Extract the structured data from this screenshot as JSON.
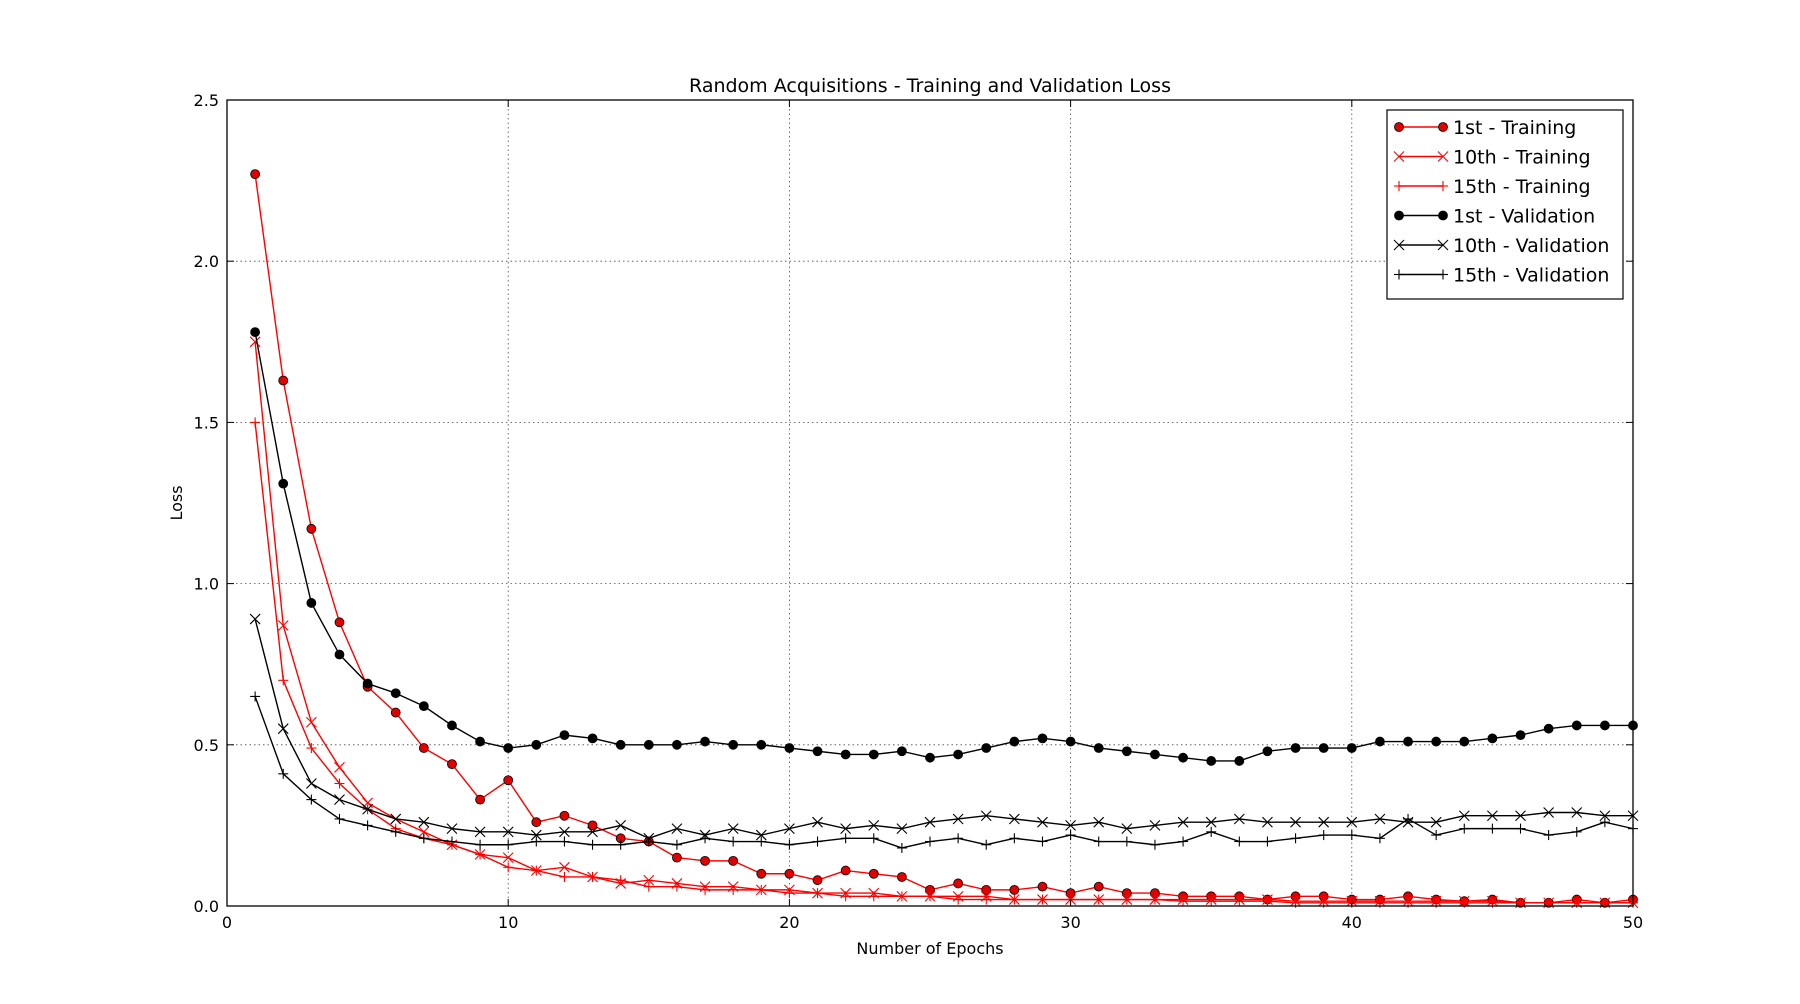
{
  "chart_data": {
    "type": "line",
    "title": "Random Acquisitions  - Training and Validation Loss",
    "xlabel": "Number of Epochs",
    "ylabel": "Loss",
    "xlim": [
      0,
      50
    ],
    "ylim": [
      0,
      2.5
    ],
    "xticks": [
      0,
      10,
      20,
      30,
      40,
      50
    ],
    "yticks": [
      0.0,
      0.5,
      1.0,
      1.5,
      2.0,
      2.5
    ],
    "xtick_labels": [
      "0",
      "10",
      "20",
      "30",
      "40",
      "50"
    ],
    "ytick_labels": [
      "0.0",
      "0.5",
      "1.0",
      "1.5",
      "2.0",
      "2.5"
    ],
    "grid": true,
    "legend_position": "top-right",
    "x": [
      1,
      2,
      3,
      4,
      5,
      6,
      7,
      8,
      9,
      10,
      11,
      12,
      13,
      14,
      15,
      16,
      17,
      18,
      19,
      20,
      21,
      22,
      23,
      24,
      25,
      26,
      27,
      28,
      29,
      30,
      31,
      32,
      33,
      34,
      35,
      36,
      37,
      38,
      39,
      40,
      41,
      42,
      43,
      44,
      45,
      46,
      47,
      48,
      49,
      50
    ],
    "series": [
      {
        "name": "1st - Training",
        "color": "#ff0000",
        "marker": "circle",
        "values": [
          2.27,
          1.63,
          1.17,
          0.88,
          0.68,
          0.6,
          0.49,
          0.44,
          0.33,
          0.39,
          0.26,
          0.28,
          0.25,
          0.21,
          0.2,
          0.15,
          0.14,
          0.14,
          0.1,
          0.1,
          0.08,
          0.11,
          0.1,
          0.09,
          0.05,
          0.07,
          0.05,
          0.05,
          0.06,
          0.04,
          0.06,
          0.04,
          0.04,
          0.03,
          0.03,
          0.03,
          0.02,
          0.03,
          0.03,
          0.02,
          0.02,
          0.03,
          0.02,
          0.015,
          0.02,
          0.01,
          0.01,
          0.02,
          0.01,
          0.02
        ]
      },
      {
        "name": "10th - Training",
        "color": "#ff0000",
        "marker": "x",
        "values": [
          1.75,
          0.87,
          0.57,
          0.43,
          0.32,
          0.27,
          0.23,
          0.19,
          0.16,
          0.15,
          0.11,
          0.12,
          0.09,
          0.07,
          0.08,
          0.07,
          0.06,
          0.06,
          0.05,
          0.05,
          0.04,
          0.04,
          0.04,
          0.03,
          0.03,
          0.03,
          0.03,
          0.02,
          0.02,
          0.02,
          0.02,
          0.02,
          0.02,
          0.02,
          0.02,
          0.02,
          0.02,
          0.015,
          0.015,
          0.015,
          0.015,
          0.015,
          0.015,
          0.015,
          0.015,
          0.01,
          0.01,
          0.01,
          0.01,
          0.01
        ]
      },
      {
        "name": "15th - Training",
        "color": "#ff0000",
        "marker": "plus",
        "values": [
          1.5,
          0.7,
          0.49,
          0.38,
          0.3,
          0.24,
          0.21,
          0.19,
          0.16,
          0.12,
          0.11,
          0.09,
          0.09,
          0.08,
          0.06,
          0.06,
          0.05,
          0.05,
          0.05,
          0.04,
          0.04,
          0.03,
          0.03,
          0.03,
          0.03,
          0.02,
          0.02,
          0.02,
          0.02,
          0.02,
          0.02,
          0.02,
          0.02,
          0.015,
          0.015,
          0.015,
          0.015,
          0.01,
          0.01,
          0.01,
          0.01,
          0.01,
          0.01,
          0.01,
          0.01,
          0.01,
          0.01,
          0.01,
          0.01,
          0.01
        ]
      },
      {
        "name": "1st - Validation",
        "color": "#000000",
        "marker": "circle",
        "values": [
          1.78,
          1.31,
          0.94,
          0.78,
          0.69,
          0.66,
          0.62,
          0.56,
          0.51,
          0.49,
          0.5,
          0.53,
          0.52,
          0.5,
          0.5,
          0.5,
          0.51,
          0.5,
          0.5,
          0.49,
          0.48,
          0.47,
          0.47,
          0.48,
          0.46,
          0.47,
          0.49,
          0.51,
          0.52,
          0.51,
          0.49,
          0.48,
          0.47,
          0.46,
          0.45,
          0.45,
          0.48,
          0.49,
          0.49,
          0.49,
          0.51,
          0.51,
          0.51,
          0.51,
          0.52,
          0.53,
          0.55,
          0.56,
          0.56,
          0.56
        ]
      },
      {
        "name": "10th - Validation",
        "color": "#000000",
        "marker": "x",
        "values": [
          0.89,
          0.55,
          0.38,
          0.33,
          0.3,
          0.27,
          0.26,
          0.24,
          0.23,
          0.23,
          0.22,
          0.23,
          0.23,
          0.25,
          0.21,
          0.24,
          0.22,
          0.24,
          0.22,
          0.24,
          0.26,
          0.24,
          0.25,
          0.24,
          0.26,
          0.27,
          0.28,
          0.27,
          0.26,
          0.25,
          0.26,
          0.24,
          0.25,
          0.26,
          0.26,
          0.27,
          0.26,
          0.26,
          0.26,
          0.26,
          0.27,
          0.26,
          0.26,
          0.28,
          0.28,
          0.28,
          0.29,
          0.29,
          0.28,
          0.28
        ]
      },
      {
        "name": "15th - Validation",
        "color": "#000000",
        "marker": "plus",
        "values": [
          0.65,
          0.41,
          0.33,
          0.27,
          0.25,
          0.23,
          0.21,
          0.2,
          0.19,
          0.19,
          0.2,
          0.2,
          0.19,
          0.19,
          0.2,
          0.19,
          0.21,
          0.2,
          0.2,
          0.19,
          0.2,
          0.21,
          0.21,
          0.18,
          0.2,
          0.21,
          0.19,
          0.21,
          0.2,
          0.22,
          0.2,
          0.2,
          0.19,
          0.2,
          0.23,
          0.2,
          0.2,
          0.21,
          0.22,
          0.22,
          0.21,
          0.27,
          0.22,
          0.24,
          0.24,
          0.24,
          0.22,
          0.23,
          0.26,
          0.24
        ]
      }
    ]
  }
}
